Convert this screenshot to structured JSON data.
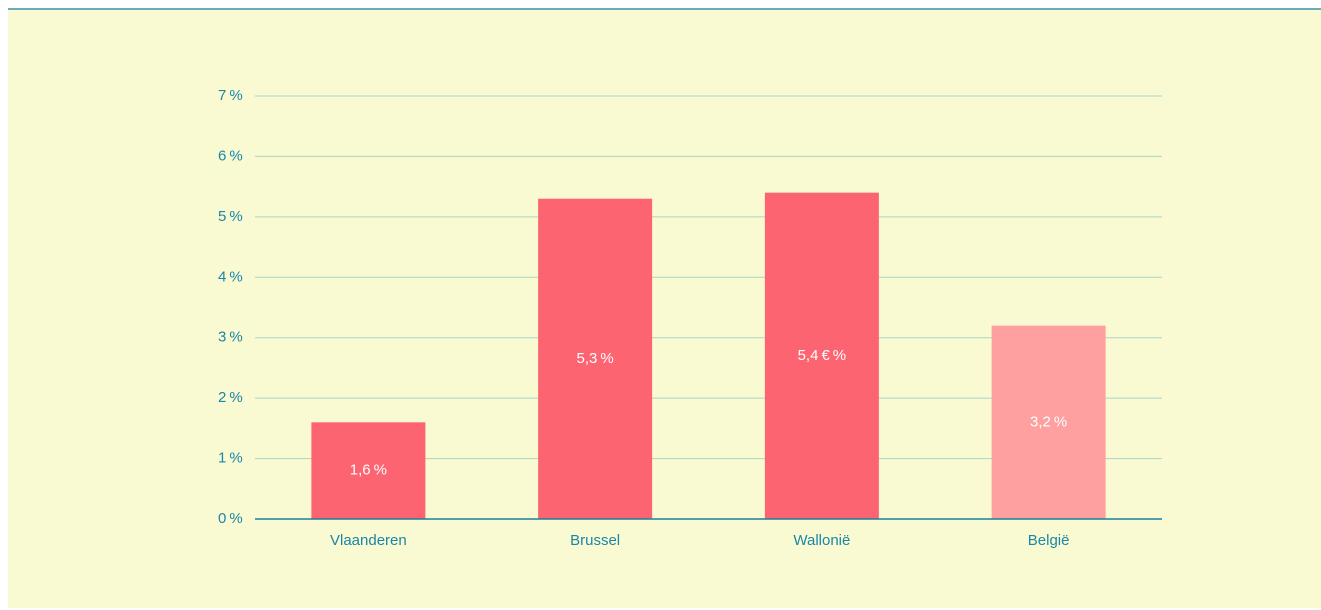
{
  "chart_data": {
    "type": "bar",
    "categories": [
      "Vlaanderen",
      "Brussel",
      "Wallonië",
      "België"
    ],
    "values": [
      1.6,
      5.3,
      5.4,
      3.2
    ],
    "value_labels": [
      "1,6 %",
      "5,3 %",
      "5,4 € %",
      "3,2 %"
    ],
    "colors": [
      "#fc6472",
      "#fc6472",
      "#fc6472",
      "#ffa0a0"
    ],
    "ylim": [
      0,
      7
    ],
    "yticks": [
      {
        "value": 0,
        "label": "0 %"
      },
      {
        "value": 1,
        "label": "1 %"
      },
      {
        "value": 2,
        "label": "2 %"
      },
      {
        "value": 3,
        "label": "3 %"
      },
      {
        "value": 4,
        "label": "4 %"
      },
      {
        "value": 5,
        "label": "5 %"
      },
      {
        "value": 6,
        "label": "6 %"
      },
      {
        "value": 7,
        "label": "7 %"
      }
    ],
    "grid": true
  }
}
